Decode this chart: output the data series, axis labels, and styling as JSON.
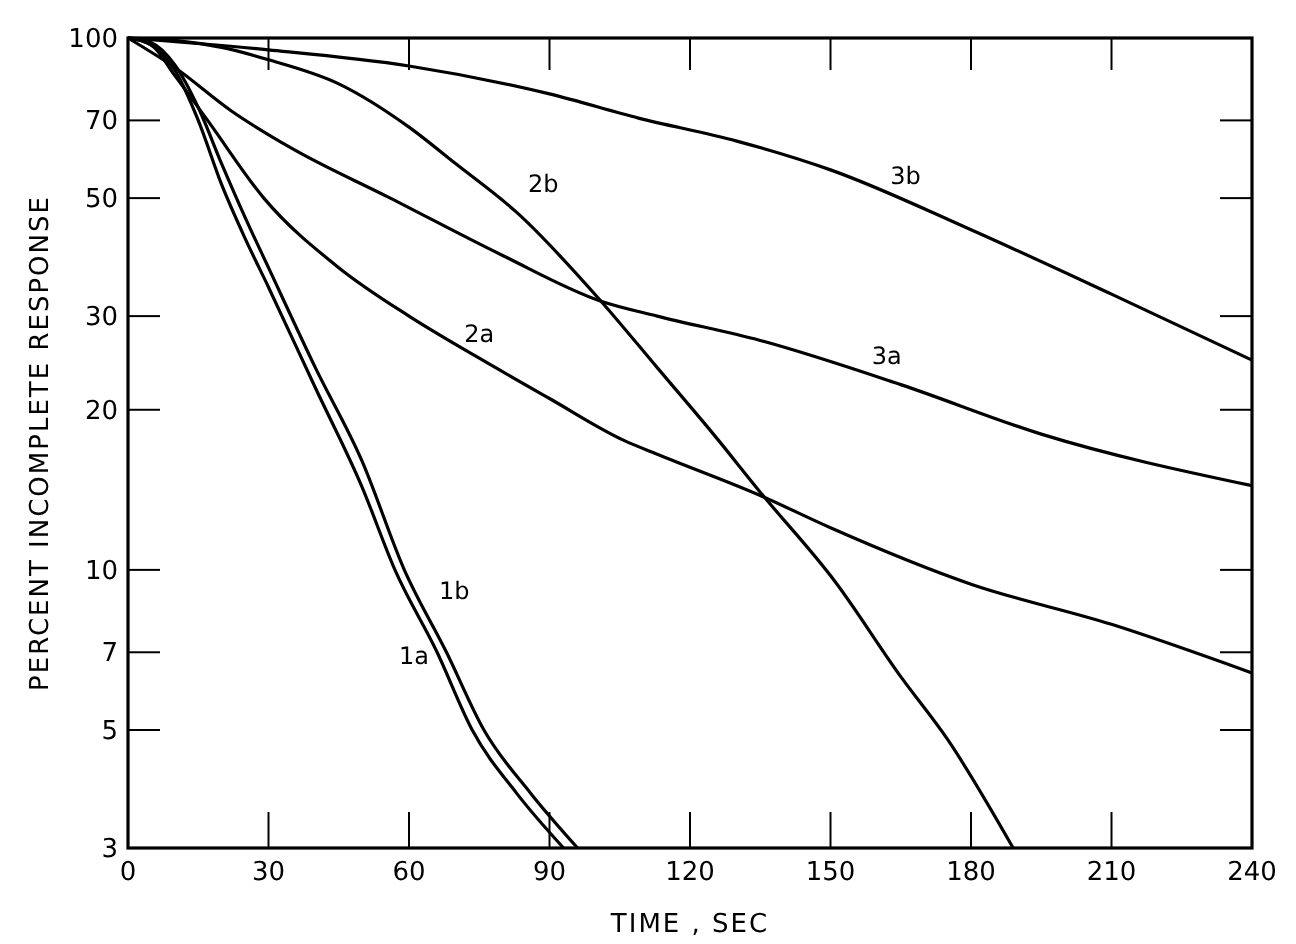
{
  "chart_data": {
    "type": "line",
    "xlabel": "TIME , SEC",
    "ylabel": "PERCENT INCOMPLETE RESPONSE",
    "log": "y",
    "xlim": [
      0,
      240
    ],
    "ylim": [
      3,
      100
    ],
    "xticks": [
      0,
      30,
      60,
      90,
      120,
      150,
      180,
      210,
      240
    ],
    "yticks": [
      3,
      5,
      7,
      10,
      20,
      30,
      50,
      70,
      100
    ],
    "marker": "none",
    "line_style": "solid",
    "legend": false,
    "grid": false,
    "series": [
      {
        "name": "1a",
        "color": "#000000",
        "x": [
          0,
          5,
          10,
          15,
          20,
          25,
          30,
          40,
          50,
          57,
          66,
          73.5,
          83,
          93
        ],
        "values": [
          100,
          97,
          87,
          70,
          53,
          42,
          34,
          22,
          14.3,
          10,
          7,
          5,
          3.8,
          3
        ]
      },
      {
        "name": "1b",
        "color": "#000000",
        "x": [
          0,
          5,
          10,
          15,
          20,
          25,
          30,
          40,
          50,
          59,
          68,
          76,
          86,
          96
        ],
        "values": [
          100,
          98,
          89,
          74,
          58,
          46,
          37,
          24,
          16,
          10,
          7,
          5,
          3.8,
          3
        ]
      },
      {
        "name": "2a",
        "color": "#000000",
        "x": [
          0,
          5,
          10,
          17,
          29,
          45,
          60,
          75,
          90,
          106,
          113,
          135,
          150,
          180,
          210,
          240
        ],
        "values": [
          100,
          97,
          85,
          70,
          50,
          37,
          30,
          25,
          21,
          17.5,
          16.5,
          13.8,
          12,
          9.4,
          7.9,
          6.4
        ]
      },
      {
        "name": "2b",
        "color": "#000000",
        "x": [
          0,
          10,
          20,
          30,
          45,
          60,
          70,
          83,
          101,
          113,
          125,
          135,
          151,
          165,
          175,
          189
        ],
        "values": [
          100,
          99,
          96,
          91,
          82,
          68,
          58,
          47,
          32,
          24,
          18,
          14,
          9.5,
          6.3,
          4.8,
          3
        ]
      },
      {
        "name": "3a",
        "color": "#000000",
        "x": [
          0,
          10,
          22,
          35,
          56,
          80,
          101,
          113,
          135,
          165,
          195,
          240
        ],
        "values": [
          100,
          88,
          73,
          62,
          50,
          39,
          32,
          30,
          27,
          22.3,
          18,
          14.4
        ]
      },
      {
        "name": "3b",
        "color": "#000000",
        "x": [
          0,
          30,
          60,
          90,
          109,
          130,
          150,
          180,
          210,
          240
        ],
        "values": [
          100,
          95,
          88.6,
          78.5,
          70.7,
          64,
          56.5,
          43.6,
          33,
          24.8
        ]
      }
    ]
  }
}
